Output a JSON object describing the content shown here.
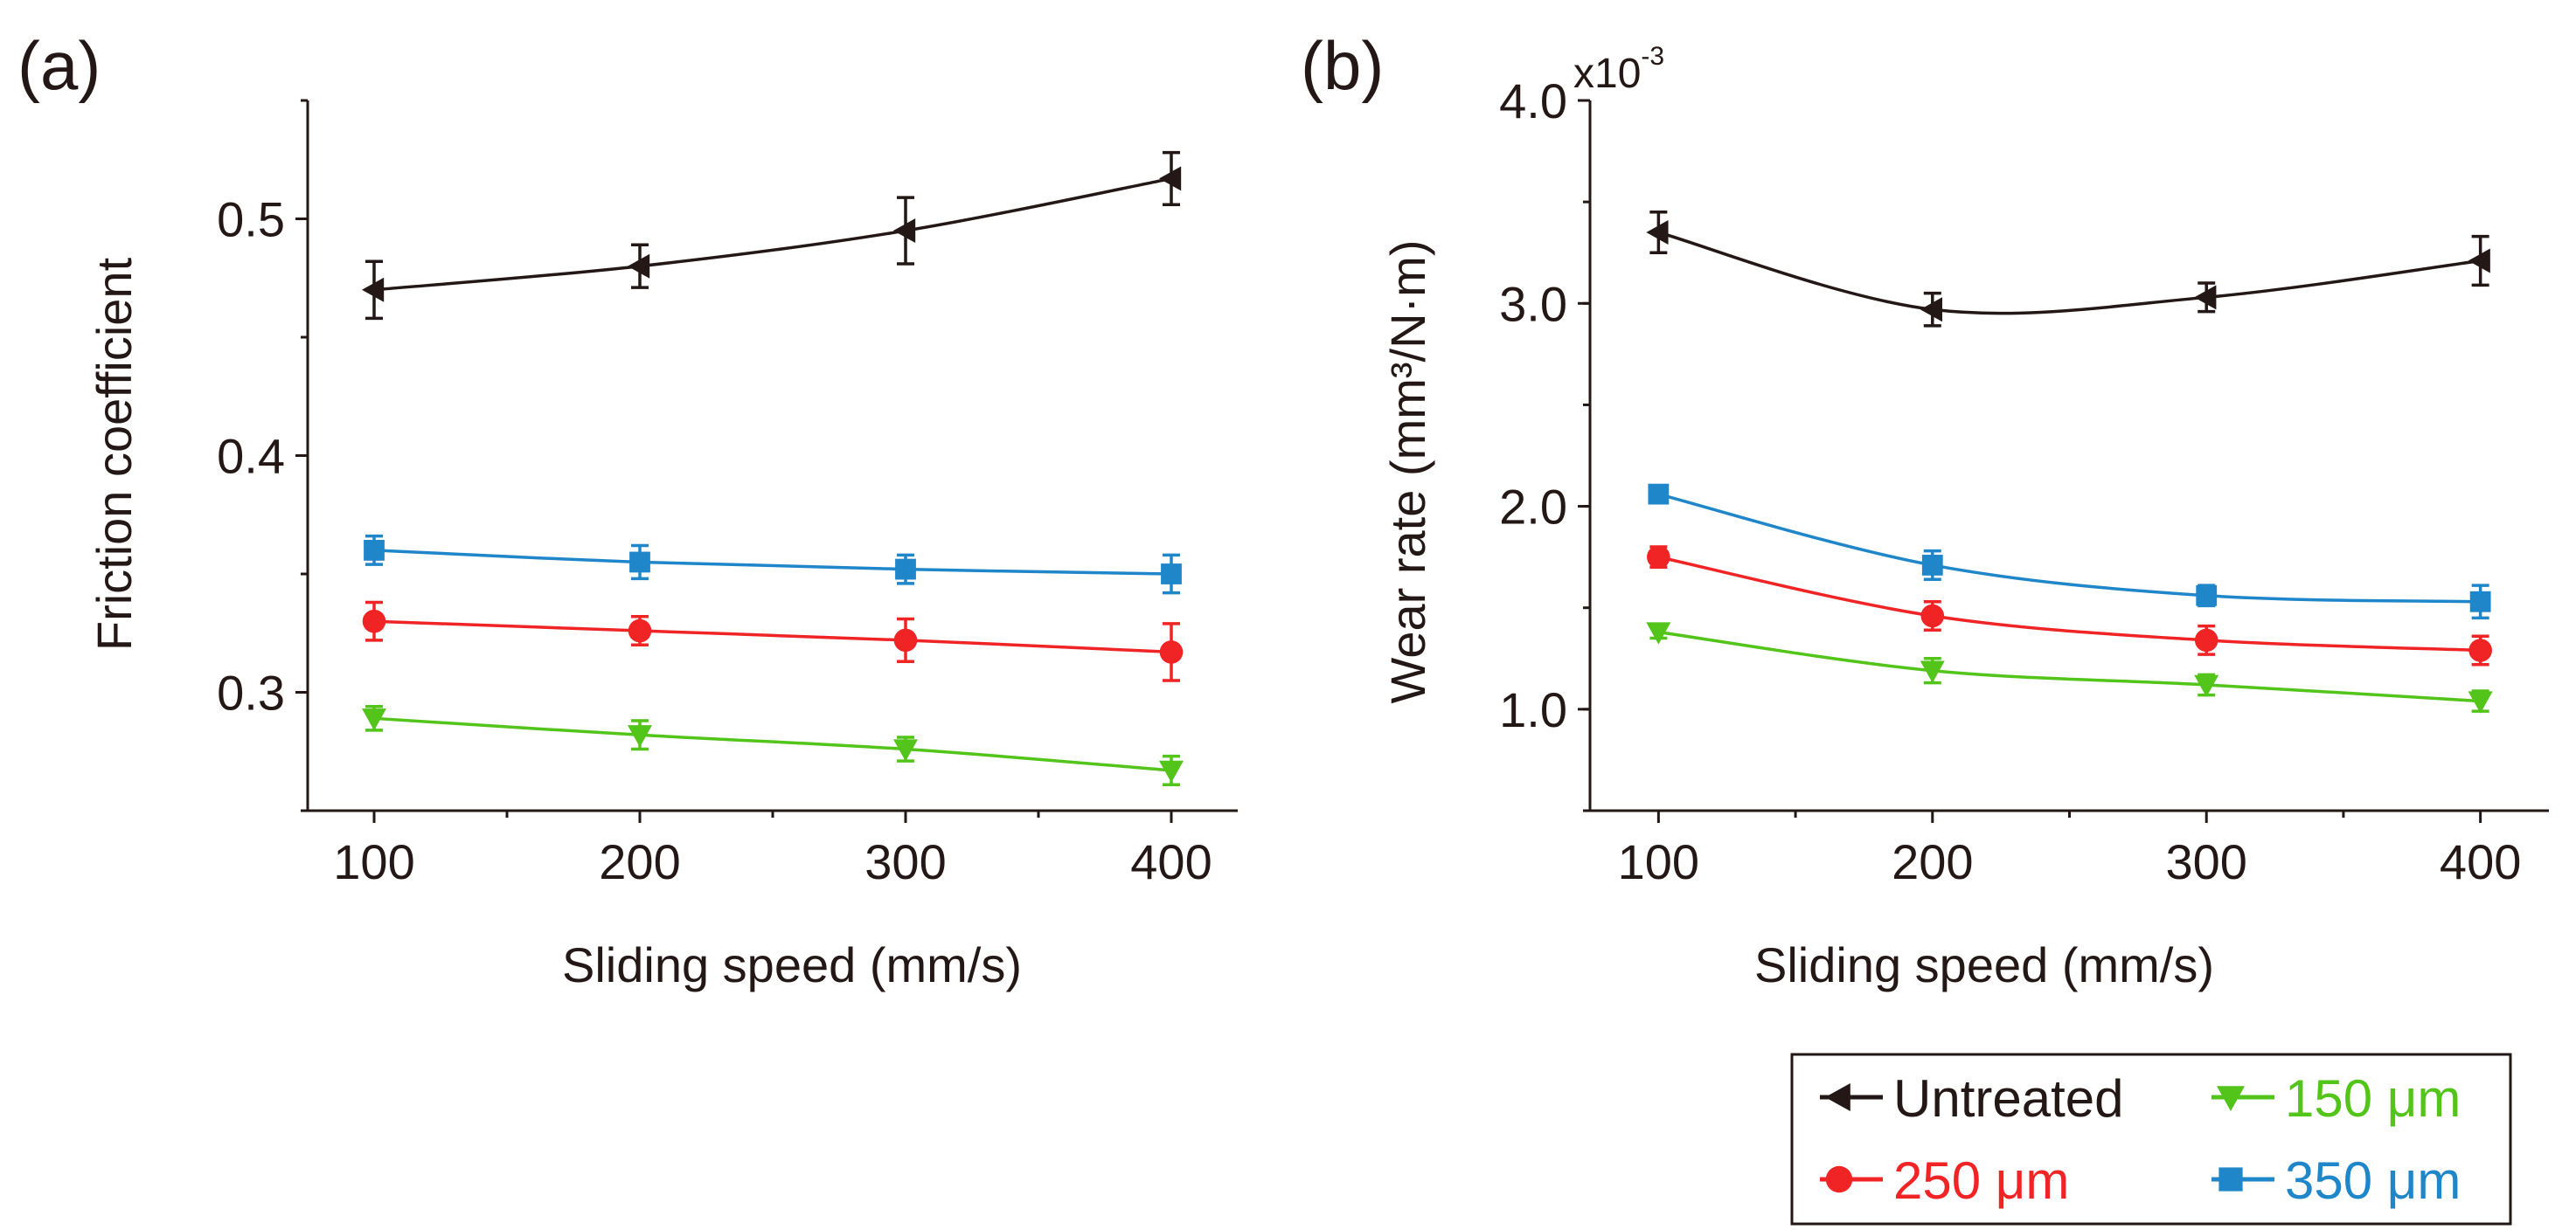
{
  "colors": {
    "untreated": "#231815",
    "um150": "#52c41a",
    "um250": "#f02424",
    "um350": "#1f86c9",
    "axis": "#231815"
  },
  "legend": {
    "items": [
      {
        "key": "untreated",
        "label": "Untreated",
        "marker": "left-triangle"
      },
      {
        "key": "um150",
        "label": "150 μm",
        "marker": "down-triangle"
      },
      {
        "key": "um250",
        "label": "250 μm",
        "marker": "circle"
      },
      {
        "key": "um350",
        "label": "350 μm",
        "marker": "square"
      }
    ]
  },
  "chart_data": [
    {
      "panel": "(a)",
      "type": "line",
      "title": "",
      "xlabel": "Sliding speed (mm/s)",
      "ylabel": "Friction coefficient",
      "x": [
        100,
        200,
        300,
        400
      ],
      "xlim": [
        75,
        425
      ],
      "ylim": [
        0.25,
        0.55
      ],
      "xticks": [
        100,
        200,
        300,
        400
      ],
      "yticks": [
        0.3,
        0.4,
        0.5
      ],
      "ytick_labels": [
        "0.3",
        "0.4",
        "0.5"
      ],
      "series": [
        {
          "key": "untreated",
          "name": "Untreated",
          "values": [
            0.47,
            0.48,
            0.495,
            0.517
          ],
          "errors": [
            0.012,
            0.009,
            0.014,
            0.011
          ]
        },
        {
          "key": "um350",
          "name": "350 μm",
          "values": [
            0.36,
            0.355,
            0.352,
            0.35
          ],
          "errors": [
            0.006,
            0.007,
            0.006,
            0.008
          ]
        },
        {
          "key": "um250",
          "name": "250 μm",
          "values": [
            0.33,
            0.326,
            0.322,
            0.317
          ],
          "errors": [
            0.008,
            0.006,
            0.009,
            0.012
          ]
        },
        {
          "key": "um150",
          "name": "150 μm",
          "values": [
            0.289,
            0.282,
            0.276,
            0.267
          ],
          "errors": [
            0.005,
            0.006,
            0.005,
            0.006
          ]
        }
      ]
    },
    {
      "panel": "(b)",
      "type": "line",
      "title": "",
      "xlabel": "Sliding speed (mm/s)",
      "ylabel": "Wear rate (mm³/N·m)",
      "scale_note_base": "x10",
      "scale_note_exp": "-3",
      "x": [
        100,
        200,
        300,
        400
      ],
      "xlim": [
        75,
        425
      ],
      "ylim": [
        0.5,
        4.0
      ],
      "xticks": [
        100,
        200,
        300,
        400
      ],
      "yticks": [
        1.0,
        2.0,
        3.0,
        4.0
      ],
      "ytick_labels": [
        "1.0",
        "2.0",
        "3.0",
        "4.0"
      ],
      "series": [
        {
          "key": "untreated",
          "name": "Untreated",
          "values": [
            3.35,
            2.97,
            3.03,
            3.21
          ],
          "errors": [
            0.1,
            0.08,
            0.07,
            0.12
          ]
        },
        {
          "key": "um350",
          "name": "350 μm",
          "values": [
            2.06,
            1.71,
            1.56,
            1.53
          ],
          "errors": [
            0.03,
            0.07,
            0.05,
            0.08
          ]
        },
        {
          "key": "um250",
          "name": "250 μm",
          "values": [
            1.75,
            1.46,
            1.34,
            1.29
          ],
          "errors": [
            0.05,
            0.07,
            0.07,
            0.07
          ]
        },
        {
          "key": "um150",
          "name": "150 μm",
          "values": [
            1.38,
            1.19,
            1.12,
            1.04
          ],
          "errors": [
            0.03,
            0.06,
            0.05,
            0.05
          ]
        }
      ]
    }
  ]
}
